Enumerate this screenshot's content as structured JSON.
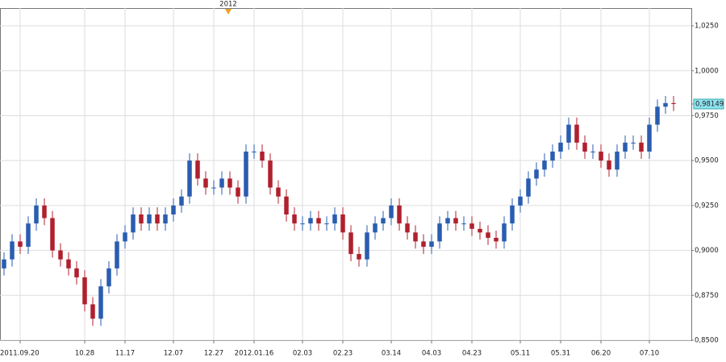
{
  "chart_data": {
    "type": "candlestick",
    "header_label": "2012",
    "up_color": "#2a5db0",
    "down_color": "#b0202e",
    "open": [
      0.89,
      0.895,
      0.905,
      0.902,
      0.915,
      0.925,
      0.918,
      0.9,
      0.895,
      0.89,
      0.885,
      0.87,
      0.862,
      0.88,
      0.89,
      0.905,
      0.91,
      0.92,
      0.915,
      0.92,
      0.915,
      0.92,
      0.925,
      0.93,
      0.95,
      0.94,
      0.935,
      0.935,
      0.94,
      0.935,
      0.93,
      0.955,
      0.955,
      0.95,
      0.935,
      0.93,
      0.92,
      0.915,
      0.915,
      0.918,
      0.915,
      0.915,
      0.92,
      0.91,
      0.898,
      0.895,
      0.91,
      0.915,
      0.918,
      0.925,
      0.915,
      0.91,
      0.905,
      0.902,
      0.905,
      0.915,
      0.918,
      0.915,
      0.915,
      0.912,
      0.91,
      0.907,
      0.905,
      0.915,
      0.925,
      0.93,
      0.94,
      0.945,
      0.95,
      0.955,
      0.96,
      0.97,
      0.96,
      0.955,
      0.955,
      0.95,
      0.945,
      0.955,
      0.96,
      0.96,
      0.955,
      0.97,
      0.98,
      0.982
    ],
    "high": [
      0.899,
      0.909,
      0.909,
      0.919,
      0.929,
      0.929,
      0.922,
      0.904,
      0.899,
      0.894,
      0.889,
      0.874,
      0.884,
      0.894,
      0.909,
      0.914,
      0.924,
      0.924,
      0.924,
      0.924,
      0.924,
      0.929,
      0.934,
      0.954,
      0.954,
      0.944,
      0.939,
      0.944,
      0.944,
      0.939,
      0.959,
      0.959,
      0.959,
      0.954,
      0.939,
      0.934,
      0.924,
      0.919,
      0.922,
      0.922,
      0.919,
      0.924,
      0.924,
      0.914,
      0.902,
      0.914,
      0.919,
      0.922,
      0.929,
      0.929,
      0.919,
      0.914,
      0.909,
      0.909,
      0.919,
      0.922,
      0.922,
      0.919,
      0.919,
      0.916,
      0.914,
      0.911,
      0.919,
      0.929,
      0.934,
      0.944,
      0.949,
      0.954,
      0.959,
      0.964,
      0.974,
      0.974,
      0.964,
      0.959,
      0.959,
      0.954,
      0.959,
      0.964,
      0.964,
      0.964,
      0.974,
      0.984,
      0.986,
      0.986
    ],
    "low": [
      0.886,
      0.891,
      0.898,
      0.898,
      0.911,
      0.914,
      0.896,
      0.891,
      0.886,
      0.881,
      0.866,
      0.858,
      0.858,
      0.876,
      0.886,
      0.901,
      0.906,
      0.911,
      0.911,
      0.911,
      0.911,
      0.916,
      0.921,
      0.926,
      0.936,
      0.931,
      0.931,
      0.931,
      0.931,
      0.926,
      0.926,
      0.951,
      0.946,
      0.931,
      0.926,
      0.916,
      0.911,
      0.911,
      0.911,
      0.911,
      0.911,
      0.911,
      0.906,
      0.894,
      0.891,
      0.891,
      0.906,
      0.911,
      0.914,
      0.911,
      0.906,
      0.901,
      0.898,
      0.898,
      0.901,
      0.911,
      0.911,
      0.911,
      0.908,
      0.906,
      0.903,
      0.901,
      0.901,
      0.911,
      0.921,
      0.926,
      0.936,
      0.941,
      0.946,
      0.951,
      0.956,
      0.956,
      0.951,
      0.951,
      0.946,
      0.941,
      0.941,
      0.951,
      0.956,
      0.951,
      0.951,
      0.966,
      0.976,
      0.9775
    ],
    "close": [
      0.895,
      0.905,
      0.902,
      0.915,
      0.925,
      0.918,
      0.9,
      0.895,
      0.89,
      0.885,
      0.87,
      0.862,
      0.88,
      0.89,
      0.905,
      0.91,
      0.92,
      0.915,
      0.92,
      0.915,
      0.92,
      0.925,
      0.93,
      0.95,
      0.94,
      0.935,
      0.935,
      0.94,
      0.935,
      0.93,
      0.955,
      0.955,
      0.95,
      0.935,
      0.93,
      0.92,
      0.915,
      0.915,
      0.918,
      0.915,
      0.915,
      0.92,
      0.91,
      0.898,
      0.895,
      0.91,
      0.915,
      0.918,
      0.925,
      0.915,
      0.91,
      0.905,
      0.902,
      0.905,
      0.915,
      0.918,
      0.915,
      0.915,
      0.912,
      0.91,
      0.907,
      0.905,
      0.915,
      0.925,
      0.93,
      0.94,
      0.945,
      0.95,
      0.955,
      0.96,
      0.97,
      0.96,
      0.955,
      0.955,
      0.95,
      0.945,
      0.955,
      0.96,
      0.96,
      0.955,
      0.97,
      0.98,
      0.982,
      0.9815
    ],
    "xlim": [
      -0.5,
      85.2
    ],
    "xticks": [
      {
        "value": 2,
        "label": "2011.09.20"
      },
      {
        "value": 10,
        "label": "10.28"
      },
      {
        "value": 15,
        "label": "11.17"
      },
      {
        "value": 21,
        "label": "12.07"
      },
      {
        "value": 26,
        "label": "12.27"
      },
      {
        "value": 31,
        "label": "2012.01.16"
      },
      {
        "value": 37,
        "label": "02.03"
      },
      {
        "value": 42,
        "label": "02.23"
      },
      {
        "value": 48,
        "label": "03.14"
      },
      {
        "value": 53,
        "label": "04.03"
      },
      {
        "value": 58,
        "label": "04.23"
      },
      {
        "value": 64,
        "label": "05.11"
      },
      {
        "value": 69,
        "label": "05.31"
      },
      {
        "value": 74,
        "label": "06.20"
      },
      {
        "value": 80,
        "label": "07.10"
      }
    ],
    "ylim": [
      0.85,
      1.0349
    ],
    "yticks": [
      {
        "value": 0.85,
        "label": "0,8500"
      },
      {
        "value": 0.875,
        "label": "0,8750"
      },
      {
        "value": 0.9,
        "label": "0,9000"
      },
      {
        "value": 0.925,
        "label": "0,9250"
      },
      {
        "value": 0.95,
        "label": "0,9500"
      },
      {
        "value": 0.975,
        "label": "0,9750"
      },
      {
        "value": 1.0,
        "label": "1,0000"
      },
      {
        "value": 1.025,
        "label": "1,0250"
      }
    ],
    "last_price": {
      "value": 0.98149,
      "label": "0,98149"
    },
    "grid": true
  }
}
